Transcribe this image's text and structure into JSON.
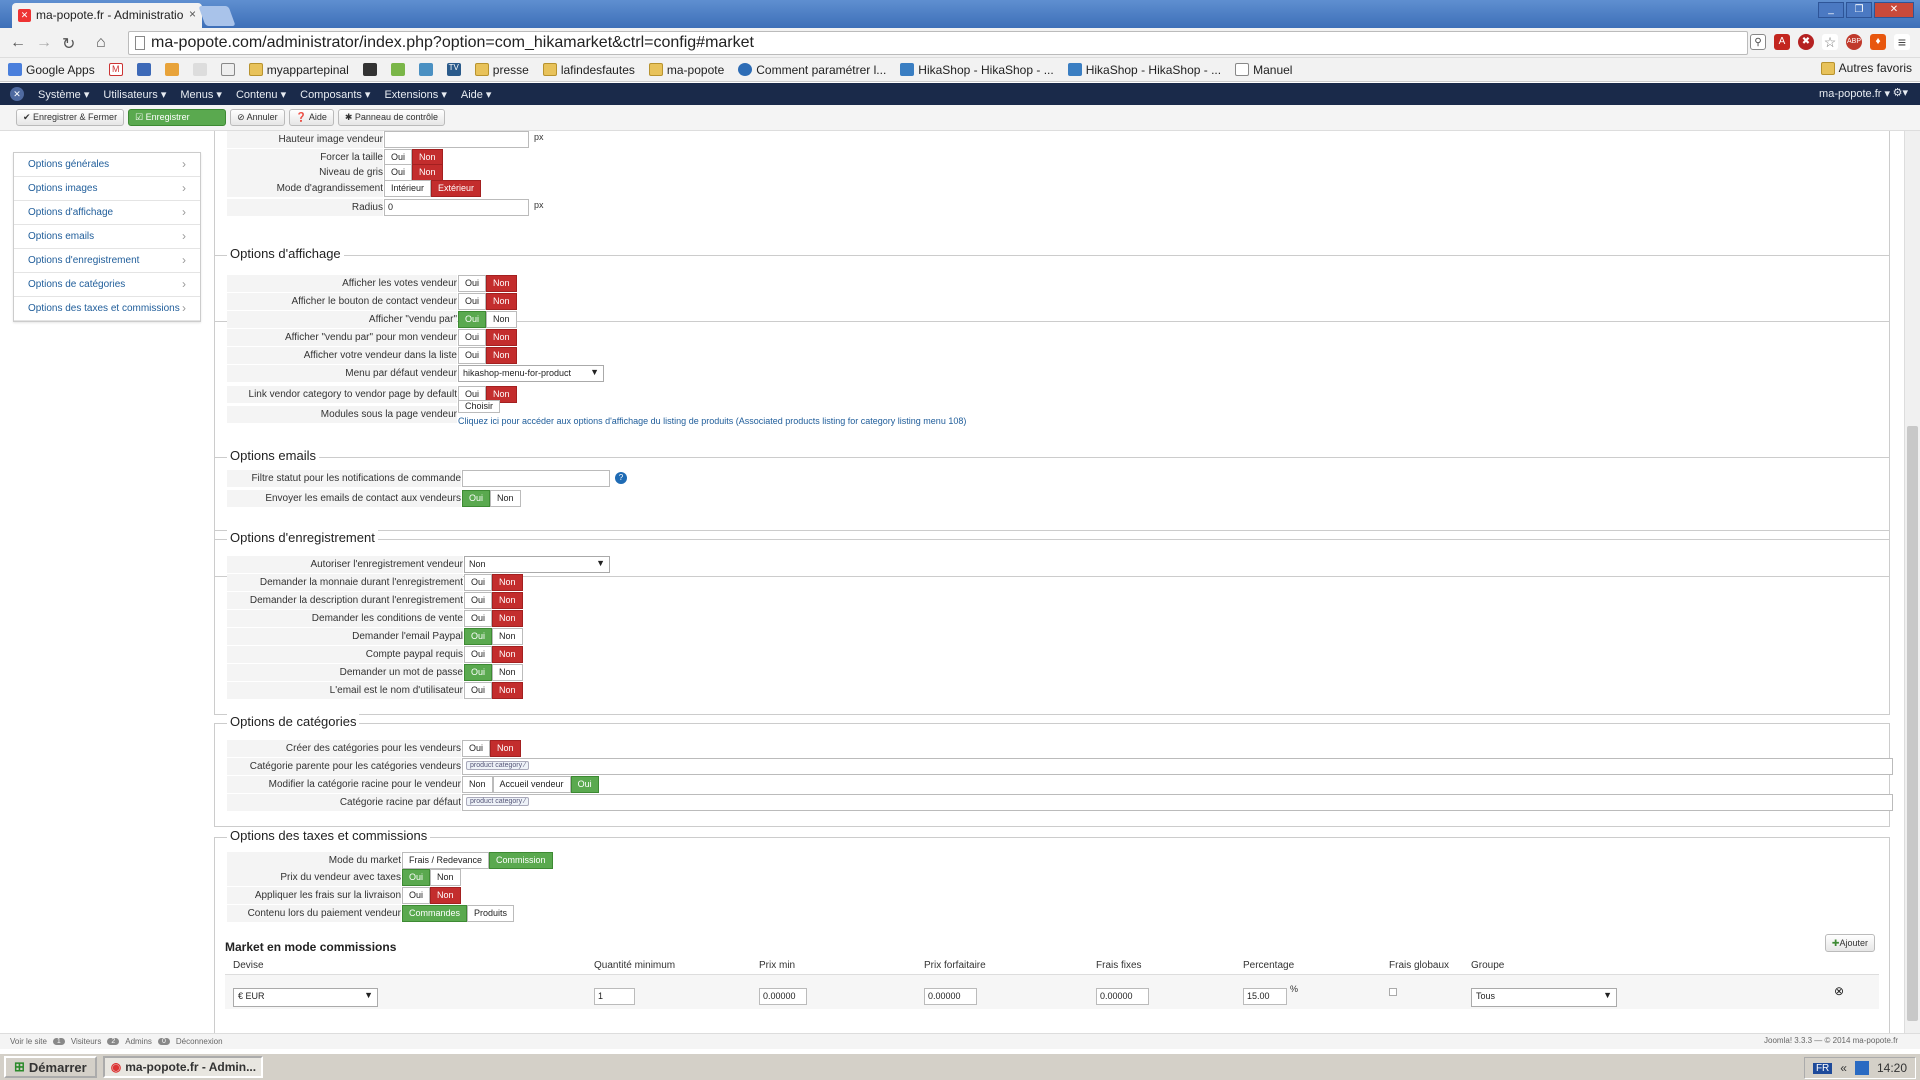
{
  "browser": {
    "tab_title": "ma-popote.fr - Administratio",
    "url": "ma-popote.com/administrator/index.php?option=com_hikamarket&ctrl=config#market",
    "bookmarks": [
      "Google Apps",
      "myappartepinal",
      "presse",
      "lafindesfautes",
      "ma-popote",
      "Comment paramétrer l...",
      "HikaShop - HikaShop - ...",
      "HikaShop - HikaShop - ...",
      "Manuel"
    ],
    "other_bookmarks": "Autres favoris"
  },
  "admin_menu": {
    "items": [
      "Système ▾",
      "Utilisateurs ▾",
      "Menus ▾",
      "Contenu ▾",
      "Composants ▾",
      "Extensions ▾",
      "Aide ▾"
    ],
    "site": "ma-popote.fr ▾"
  },
  "toolbar": {
    "save_close": "✔ Enregistrer & Fermer",
    "save": "☑ Enregistrer",
    "cancel": "⊘ Annuler",
    "help": "❓ Aide",
    "control_panel": "✱ Panneau de contrôle"
  },
  "sidebar": {
    "items": [
      "Options générales",
      "Options images",
      "Options d'affichage",
      "Options emails",
      "Options d'enregistrement",
      "Options de catégories",
      "Options des taxes et commissions"
    ]
  },
  "images": {
    "rows": [
      {
        "label": "Hauteur image vendeur",
        "type": "input",
        "value": "",
        "unit": "px"
      },
      {
        "label": "Forcer la taille",
        "type": "yn",
        "selected": "Non"
      },
      {
        "label": "Niveau de gris",
        "type": "yn",
        "selected": "Non"
      },
      {
        "label": "Mode d'agrandissement",
        "type": "opts",
        "options": [
          "Intérieur",
          "Extérieur"
        ],
        "selected": "Extérieur"
      },
      {
        "label": "Radius",
        "type": "input",
        "value": "0",
        "unit": "px"
      }
    ]
  },
  "affichage": {
    "legend": "Options d'affichage",
    "rows": [
      {
        "label": "Afficher les votes vendeur",
        "type": "yn",
        "selected": "Non"
      },
      {
        "label": "Afficher le bouton de contact vendeur",
        "type": "yn",
        "selected": "Non"
      },
      {
        "label": "Afficher \"vendu par\"",
        "type": "yn",
        "selected": "Oui"
      },
      {
        "label": "Afficher \"vendu par\" pour mon vendeur",
        "type": "yn",
        "selected": "Non"
      },
      {
        "label": "Afficher votre vendeur dans la liste",
        "type": "yn",
        "selected": "Non"
      },
      {
        "label": "Menu par défaut vendeur",
        "type": "select",
        "value": "hikashop-menu-for-product"
      },
      {
        "label": "Link vendor category to vendor page by default",
        "type": "yn",
        "selected": "Non"
      },
      {
        "label": "Modules sous la page vendeur",
        "type": "modules",
        "button": "Choisir",
        "link": "Cliquez ici pour accéder aux options d'affichage du listing de produits (Associated products listing for category listing menu 108)"
      }
    ]
  },
  "emails": {
    "legend": "Options emails",
    "rows": [
      {
        "label": "Filtre statut pour les notifications de commande",
        "type": "input_help",
        "value": ""
      },
      {
        "label": "Envoyer les emails de contact aux vendeurs",
        "type": "yn",
        "selected": "Oui"
      }
    ]
  },
  "enregistrement": {
    "legend": "Options d'enregistrement",
    "rows": [
      {
        "label": "Autoriser l'enregistrement vendeur",
        "type": "select",
        "value": "Non"
      },
      {
        "label": "Demander la monnaie durant l'enregistrement",
        "type": "yn",
        "selected": "Non"
      },
      {
        "label": "Demander la description durant l'enregistrement",
        "type": "yn",
        "selected": "Non"
      },
      {
        "label": "Demander les conditions de vente",
        "type": "yn",
        "selected": "Non"
      },
      {
        "label": "Demander l'email Paypal",
        "type": "yn",
        "selected": "Oui"
      },
      {
        "label": "Compte paypal requis",
        "type": "yn",
        "selected": "Non"
      },
      {
        "label": "Demander un mot de passe",
        "type": "yn",
        "selected": "Oui"
      },
      {
        "label": "L'email est le nom d'utilisateur",
        "type": "yn",
        "selected": "Non"
      }
    ]
  },
  "categories": {
    "legend": "Options de catégories",
    "rows": [
      {
        "label": "Créer des catégories pour les vendeurs",
        "type": "yn",
        "selected": "Non"
      },
      {
        "label": "Catégorie parente pour les catégories vendeurs",
        "type": "tagfield",
        "tag": "product category"
      },
      {
        "label": "Modifier la catégorie racine pour le vendeur",
        "type": "opts",
        "options": [
          "Non",
          "Accueil vendeur",
          "Oui"
        ],
        "selected": "Oui"
      },
      {
        "label": "Catégorie racine par défaut",
        "type": "tagfield",
        "tag": "product category"
      }
    ]
  },
  "taxes": {
    "legend": "Options des taxes et commissions",
    "rows": [
      {
        "label": "Mode du market",
        "type": "opts",
        "options": [
          "Frais / Redevance",
          "Commission"
        ],
        "selected": "Commission"
      },
      {
        "label": "Prix du vendeur avec taxes",
        "type": "yn",
        "selected": "Oui"
      },
      {
        "label": "Appliquer les frais sur la livraison",
        "type": "yn",
        "selected": "Non"
      },
      {
        "label": "Contenu lors du paiement vendeur",
        "type": "opts",
        "options": [
          "Commandes",
          "Produits"
        ],
        "selected": "Commandes"
      }
    ],
    "market_title": "Market en mode commissions",
    "add_button": "Ajouter",
    "columns": [
      "Devise",
      "Quantité minimum",
      "Prix min",
      "Prix forfaitaire",
      "Frais fixes",
      "Percentage",
      "Frais globaux",
      "Groupe"
    ],
    "row": {
      "devise": "€ EUR",
      "qty": "1",
      "prix_min": "0.00000",
      "prix_forfait": "0.00000",
      "frais_fixes": "0.00000",
      "percentage": "15.00",
      "percent_unit": "%",
      "groupe": "Tous"
    }
  },
  "status": {
    "view_site": "Voir le site",
    "visitors_count": "1",
    "visitors": "Visiteurs",
    "admins_count": "2",
    "admins": "Admins",
    "messages_count": "0",
    "logout": "Déconnexion",
    "footer": "Joomla! 3.3.3 — © 2014 ma-popote.fr"
  },
  "taskbar": {
    "start": "Démarrer",
    "app": "ma-popote.fr - Admin...",
    "lang": "FR",
    "time": "14:20"
  },
  "colors": {
    "red": "#c32d2d",
    "green": "#5aa94f",
    "admin_bar": "#1a2a4a",
    "link": "#1f5d9a"
  }
}
